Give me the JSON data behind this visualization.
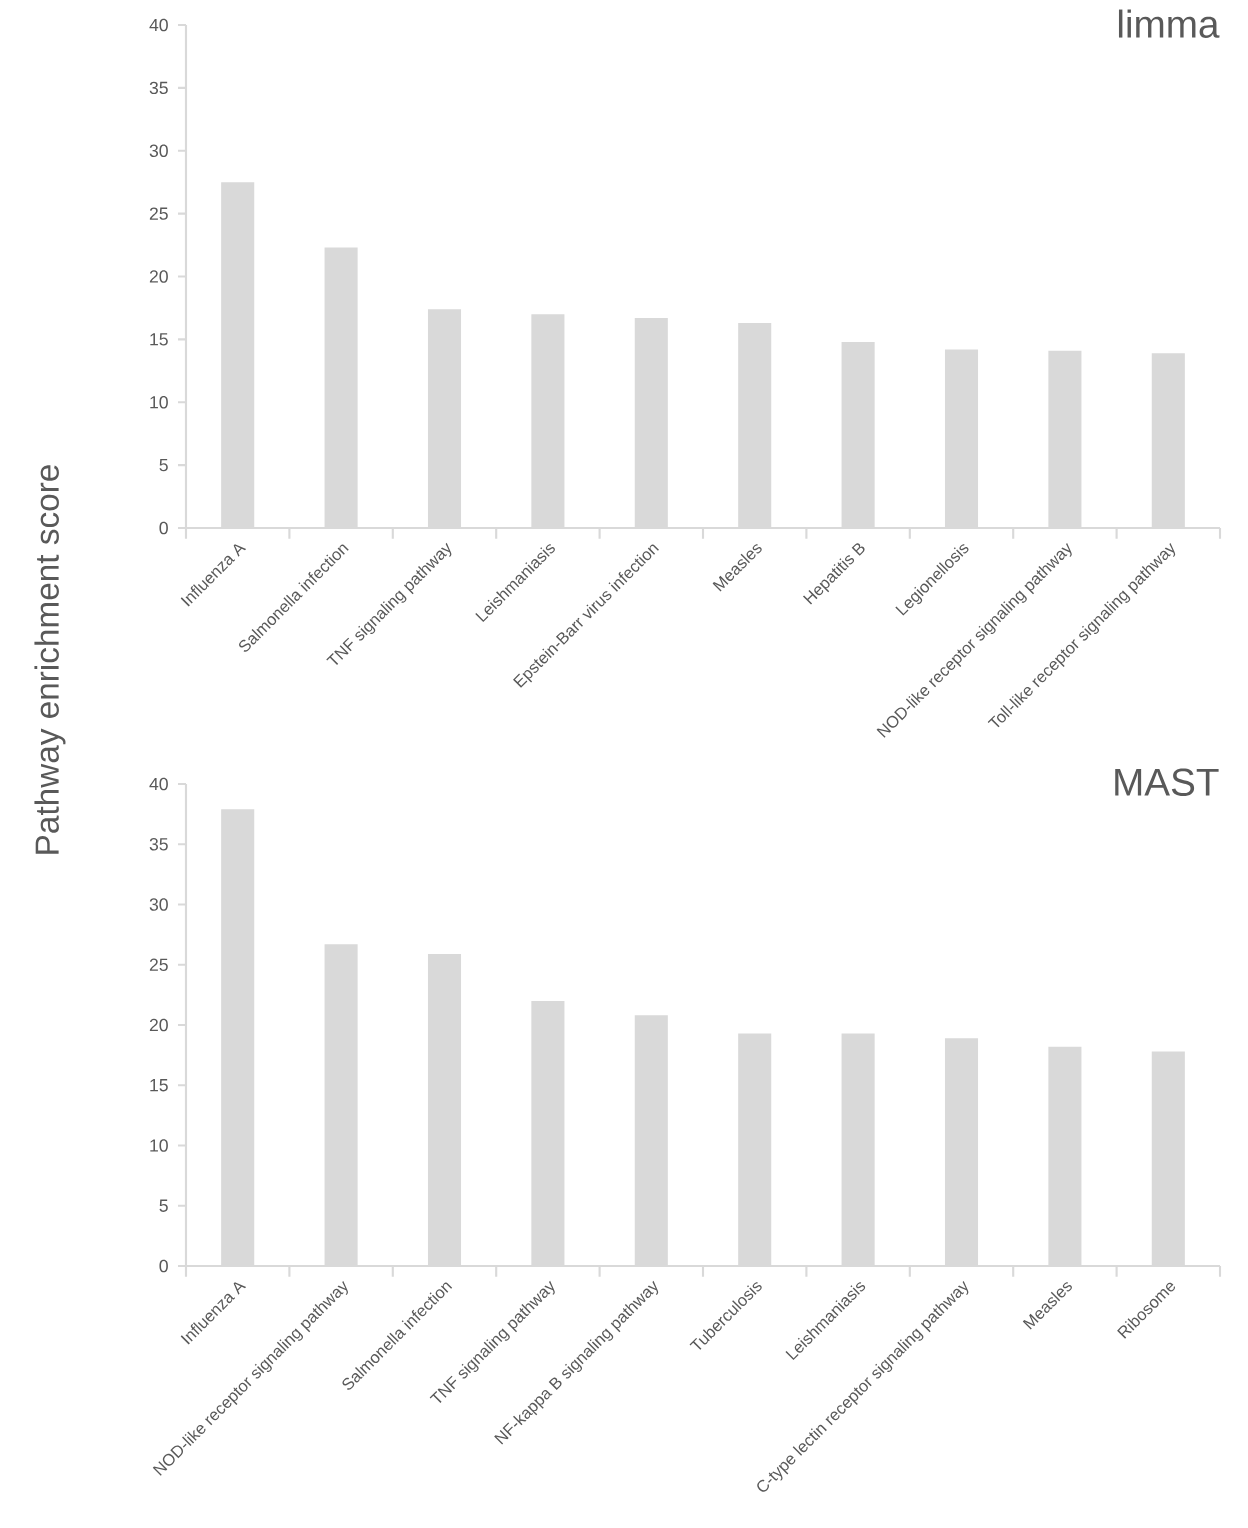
{
  "chart_data": [
    {
      "type": "bar",
      "title": "limma",
      "ylabel": "Pathway enrichment score",
      "categories": [
        "Influenza A",
        "Salmonella infection",
        "TNF signaling pathway",
        "Leishmaniasis",
        "Epstein-Barr virus infection",
        "Measles",
        "Hepatitis B",
        "Legionellosis",
        "NOD-like receptor signaling pathway",
        "Toll-like receptor signaling pathway"
      ],
      "values": [
        27.5,
        22.3,
        17.4,
        17.0,
        16.7,
        16.3,
        14.8,
        14.2,
        14.1,
        13.9
      ],
      "color": "#d9d9d9",
      "ylim": [
        0,
        40
      ],
      "yticks": [
        0,
        5,
        10,
        15,
        20,
        25,
        30,
        35,
        40
      ]
    },
    {
      "type": "bar",
      "title": "MAST",
      "categories": [
        "Influenza A",
        "NOD-like receptor signaling pathway",
        "Salmonella infection",
        "TNF signaling pathway",
        "NF-kappa B signaling pathway",
        "Tuberculosis",
        "Leishmaniasis",
        "C-type lectin receptor signaling pathway",
        "Measles",
        "Ribosome"
      ],
      "values": [
        37.9,
        26.7,
        25.9,
        22.0,
        20.8,
        19.3,
        19.3,
        18.9,
        18.2,
        17.8
      ],
      "color": "#d9d9d9",
      "ylim": [
        0,
        40
      ],
      "yticks": [
        0,
        5,
        10,
        15,
        20,
        25,
        30,
        35,
        40
      ]
    }
  ]
}
